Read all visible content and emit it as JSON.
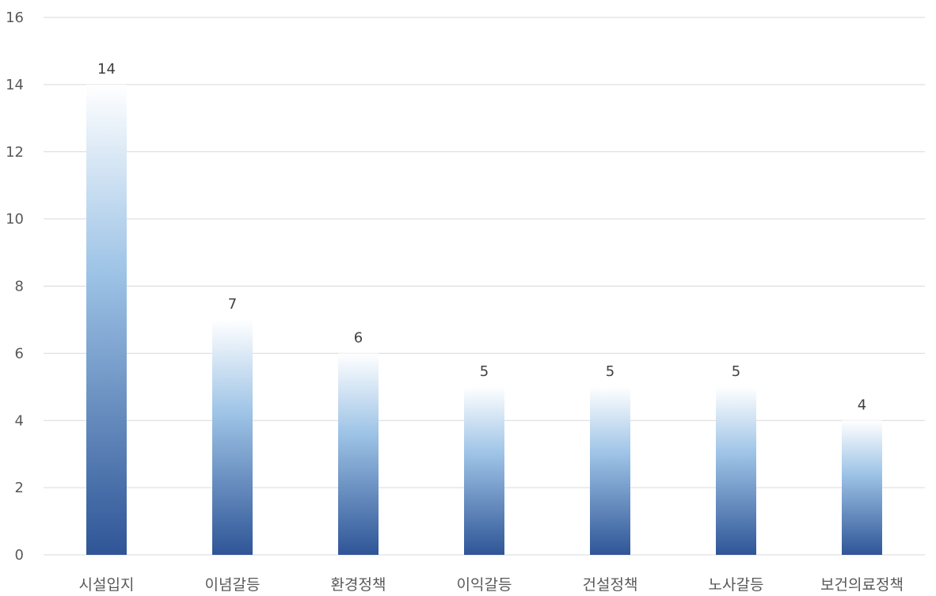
{
  "chart_data": {
    "type": "bar",
    "title": "",
    "xlabel": "",
    "ylabel": "",
    "categories": [
      "시설입지",
      "이념갈등",
      "환경정책",
      "이익갈등",
      "건설정책",
      "노사갈등",
      "보건의료정책"
    ],
    "values": [
      14,
      7,
      6,
      5,
      5,
      5,
      4
    ],
    "ylim": [
      0,
      16
    ],
    "yticks": [
      0,
      2,
      4,
      6,
      8,
      10,
      12,
      14,
      16
    ],
    "grid": true,
    "legend": "none",
    "colors": {
      "bar_bottom": "#2f5597",
      "bar_mid": "#9dc3e6",
      "bar_top": "#ffffff",
      "grid": "#d9d9d9",
      "text": "#595959"
    }
  }
}
